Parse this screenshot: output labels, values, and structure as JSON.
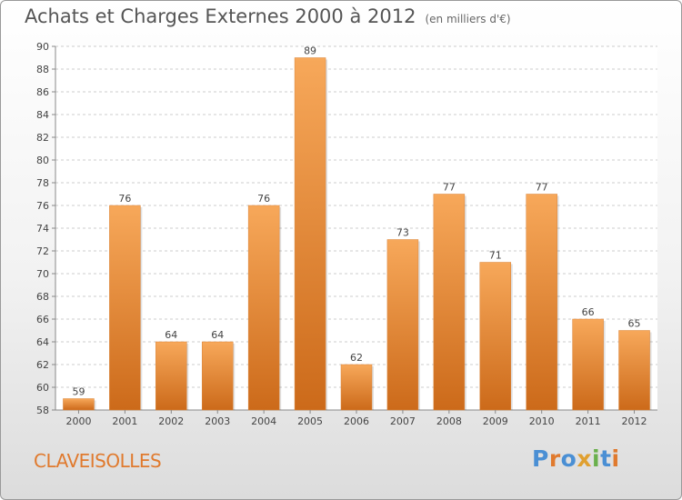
{
  "header": {
    "title": "Achats et Charges Externes 2000 à 2012",
    "subtitle": "(en milliers d'€)"
  },
  "footer": {
    "town": "CLAVEISOLLES",
    "logo_text": "Proxiti"
  },
  "colors": {
    "bar_top": "#f7a85a",
    "bar_bottom": "#cc6a1a",
    "town": "#e07a2e",
    "logo": [
      "#4a8fd4",
      "#e07a2e",
      "#4a8fd4",
      "#e0a030",
      "#6ab04c",
      "#4a8fd4",
      "#e07a2e"
    ]
  },
  "chart_data": {
    "type": "bar",
    "categories": [
      "2000",
      "2001",
      "2002",
      "2003",
      "2004",
      "2005",
      "2006",
      "2007",
      "2008",
      "2009",
      "2010",
      "2011",
      "2012"
    ],
    "values": [
      59,
      76,
      64,
      64,
      76,
      89,
      62,
      73,
      77,
      71,
      77,
      66,
      65
    ],
    "title": "Achats et Charges Externes 2000 à 2012",
    "subtitle": "(en milliers d'€)",
    "xlabel": "",
    "ylabel": "",
    "ylim": [
      58,
      90
    ],
    "yticks": [
      58,
      60,
      62,
      64,
      66,
      68,
      70,
      72,
      74,
      76,
      78,
      80,
      82,
      84,
      86,
      88,
      90
    ],
    "grid": true
  }
}
